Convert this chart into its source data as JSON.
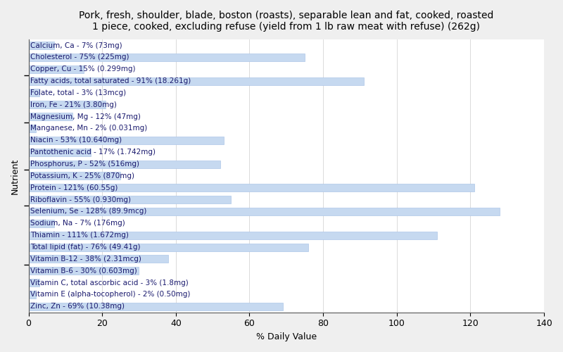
{
  "title": "Pork, fresh, shoulder, blade, boston (roasts), separable lean and fat, cooked, roasted\n1 piece, cooked, excluding refuse (yield from 1 lb raw meat with refuse) (262g)",
  "xlabel": "% Daily Value",
  "ylabel": "Nutrient",
  "nutrients": [
    "Calcium, Ca - 7% (73mg)",
    "Cholesterol - 75% (225mg)",
    "Copper, Cu - 15% (0.299mg)",
    "Fatty acids, total saturated - 91% (18.261g)",
    "Folate, total - 3% (13mcg)",
    "Iron, Fe - 21% (3.80mg)",
    "Magnesium, Mg - 12% (47mg)",
    "Manganese, Mn - 2% (0.031mg)",
    "Niacin - 53% (10.640mg)",
    "Pantothenic acid - 17% (1.742mg)",
    "Phosphorus, P - 52% (516mg)",
    "Potassium, K - 25% (870mg)",
    "Protein - 121% (60.55g)",
    "Riboflavin - 55% (0.930mg)",
    "Selenium, Se - 128% (89.9mcg)",
    "Sodium, Na - 7% (176mg)",
    "Thiamin - 111% (1.672mg)",
    "Total lipid (fat) - 76% (49.41g)",
    "Vitamin B-12 - 38% (2.31mcg)",
    "Vitamin B-6 - 30% (0.603mg)",
    "Vitamin C, total ascorbic acid - 3% (1.8mg)",
    "Vitamin E (alpha-tocopherol) - 2% (0.50mg)",
    "Zinc, Zn - 69% (10.38mg)"
  ],
  "values": [
    7,
    75,
    15,
    91,
    3,
    21,
    12,
    2,
    53,
    17,
    52,
    25,
    121,
    55,
    128,
    7,
    111,
    76,
    38,
    30,
    3,
    2,
    69
  ],
  "bar_color": "#c6d9f0",
  "bar_edge_color": "#aec6e8",
  "text_color": "#1a1a6e",
  "background_color": "#efefef",
  "plot_background_color": "#ffffff",
  "xlim": [
    0,
    140
  ],
  "xticks": [
    0,
    20,
    40,
    60,
    80,
    100,
    120,
    140
  ],
  "title_fontsize": 10,
  "label_fontsize": 9,
  "bar_label_fontsize": 7.5,
  "tick_fontsize": 9,
  "bar_height": 0.65,
  "ytick_positions": [
    3.5,
    8.5,
    12.5,
    15.5,
    17.5,
    20.5
  ]
}
